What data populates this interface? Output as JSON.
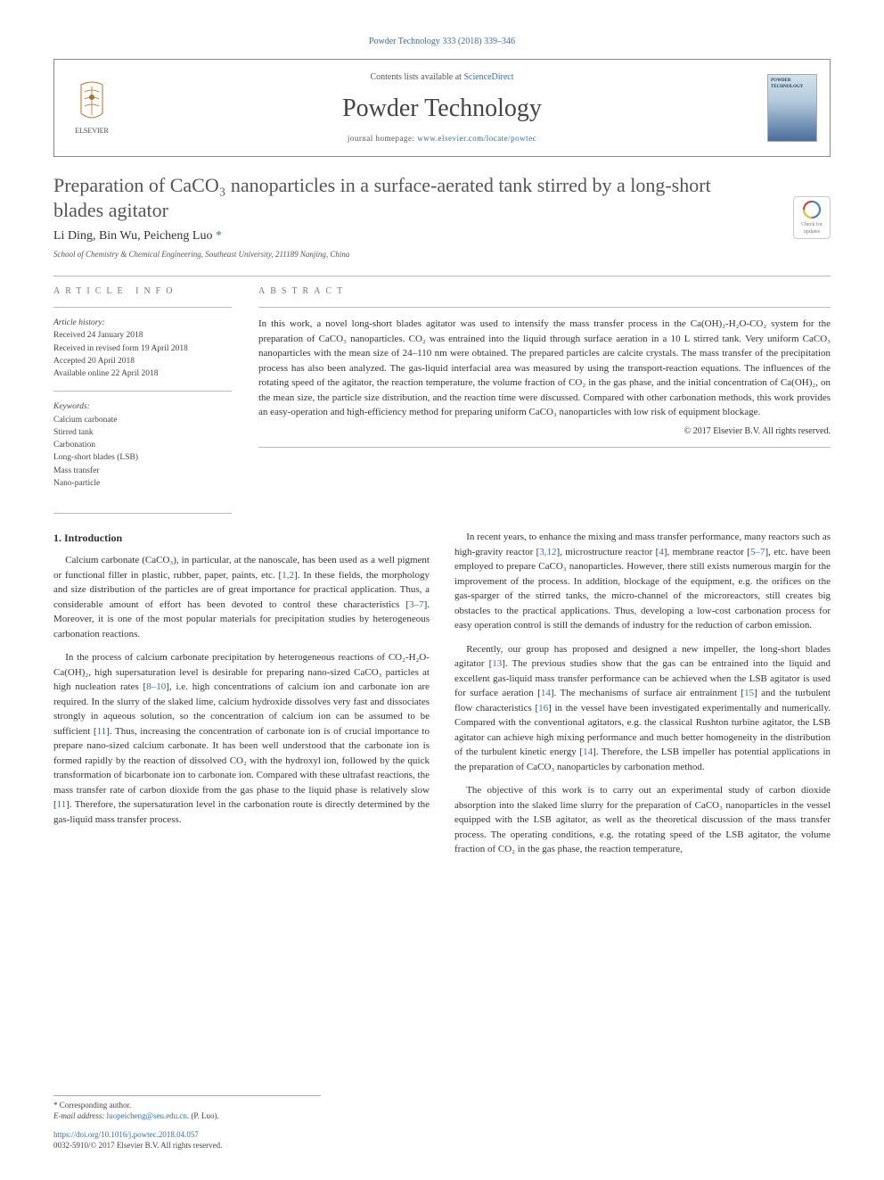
{
  "citation": "Powder Technology 333 (2018) 339–346",
  "header": {
    "contents_prefix": "Contents lists available at ",
    "contents_link": "ScienceDirect",
    "journal_name": "Powder Technology",
    "homepage_prefix": "journal homepage: ",
    "homepage_link": "www.elsevier.com/locate/powtec",
    "publisher": "ELSEVIER",
    "cover_title": "POWDER TECHNOLOGY"
  },
  "crossmark": {
    "line1": "Check for",
    "line2": "updates"
  },
  "title": "Preparation of CaCO₃ nanoparticles in a surface-aerated tank stirred by a long-short blades agitator",
  "authors_plain": "Li Ding, Bin Wu, Peicheng Luo",
  "corr_mark": " *",
  "affiliation": "School of Chemistry & Chemical Engineering, Southeast University, 211189 Nanjing, China",
  "info_head": "ARTICLE INFO",
  "abstract_head": "ABSTRACT",
  "history": {
    "label": "Article history:",
    "received": "Received 24 January 2018",
    "revised": "Received in revised form 19 April 2018",
    "accepted": "Accepted 20 April 2018",
    "online": "Available online 22 April 2018"
  },
  "keywords": {
    "label": "Keywords:",
    "items": [
      "Calcium carbonate",
      "Stirred tank",
      "Carbonation",
      "Long-short blades (LSB)",
      "Mass transfer",
      "Nano-particle"
    ]
  },
  "abstract": "In this work, a novel long-short blades agitator was used to intensify the mass transfer process in the Ca(OH)₂-H₂O-CO₂ system for the preparation of CaCO₃ nanoparticles. CO₂ was entrained into the liquid through surface aeration in a 10 L stirred tank. Very uniform CaCO₃ nanoparticles with the mean size of 24–110 nm were obtained. The prepared particles are calcite crystals. The mass transfer of the precipitation process has also been analyzed. The gas-liquid interfacial area was measured by using the transport-reaction equations. The influences of the rotating speed of the agitator, the reaction temperature, the volume fraction of CO₂ in the gas phase, and the initial concentration of Ca(OH)₂, on the mean size, the particle size distribution, and the reaction time were discussed. Compared with other carbonation methods, this work provides an easy-operation and high-efficiency method for preparing uniform CaCO₃ nanoparticles with low risk of equipment blockage.",
  "abstract_copyright": "© 2017 Elsevier B.V. All rights reserved.",
  "introduction": {
    "heading": "1. Introduction",
    "left_paras": [
      "Calcium carbonate (CaCO₃), in particular, at the nanoscale, has been used as a well pigment or functional filler in plastic, rubber, paper, paints, etc. [1,2]. In these fields, the morphology and size distribution of the particles are of great importance for practical application. Thus, a considerable amount of effort has been devoted to control these characteristics [3–7]. Moreover, it is one of the most popular materials for precipitation studies by heterogeneous carbonation reactions.",
      "In the process of calcium carbonate precipitation by heterogeneous reactions of CO₂-H₂O-Ca(OH)₂, high supersaturation level is desirable for preparing nano-sized CaCO₃ particles at high nucleation rates [8–10], i.e. high concentrations of calcium ion and carbonate ion are required. In the slurry of the slaked lime, calcium hydroxide dissolves very fast and dissociates strongly in aqueous solution, so the concentration of calcium ion can be assumed to be sufficient [11]. Thus, increasing the concentration of carbonate ion is of crucial importance to prepare nano-sized calcium carbonate. It has been well understood that the carbonate ion is formed rapidly by the reaction of dissolved CO₂ with the hydroxyl ion, followed by the quick transformation of bicarbonate ion to carbonate ion. Compared with these ultrafast reactions, the mass transfer rate of carbon dioxide from the gas phase to the liquid phase is relatively slow [11]. Therefore, the supersaturation level in the carbonation route is directly determined by the gas-liquid mass transfer process."
    ],
    "right_paras": [
      "In recent years, to enhance the mixing and mass transfer performance, many reactors such as high-gravity reactor [3,12], microstructure reactor [4], membrane reactor [5–7], etc. have been employed to prepare CaCO₃ nanoparticles. However, there still exists numerous margin for the improvement of the process. In addition, blockage of the equipment, e.g. the orifices on the gas-sparger of the stirred tanks, the micro-channel of the microreactors, still creates big obstacles to the practical applications. Thus, developing a low-cost carbonation process for easy operation control is still the demands of industry for the reduction of carbon emission.",
      "Recently, our group has proposed and designed a new impeller, the long-short blades agitator [13]. The previous studies show that the gas can be entrained into the liquid and excellent gas-liquid mass transfer performance can be achieved when the LSB agitator is used for surface aeration [14]. The mechanisms of surface air entrainment [15] and the turbulent flow characteristics [16] in the vessel have been investigated experimentally and numerically. Compared with the conventional agitators, e.g. the classical Rushton turbine agitator, the LSB agitator can achieve high mixing performance and much better homogeneity in the distribution of the turbulent kinetic energy [14]. Therefore, the LSB impeller has potential applications in the preparation of CaCO₃ nanoparticles by carbonation method.",
      "The objective of this work is to carry out an experimental study of carbon dioxide absorption into the slaked lime slurry for the preparation of CaCO₃ nanoparticles in the vessel equipped with the LSB agitator, as well as the theoretical discussion of the mass transfer process. The operating conditions, e.g. the rotating speed of the LSB agitator, the volume fraction of CO₂ in the gas phase, the reaction temperature,"
    ]
  },
  "footnote": {
    "corr": "* Corresponding author.",
    "email_label": "E-mail address:",
    "email": "luopeicheng@seu.edu.cn",
    "email_suffix": ". (P. Luo)."
  },
  "doi": "https://doi.org/10.1016/j.powtec.2018.04.057",
  "issn": "0032-5910/© 2017 Elsevier B.V. All rights reserved.",
  "colors": {
    "link": "#3a6ea5",
    "text": "#333333",
    "heading": "#555555",
    "border": "#888888"
  }
}
